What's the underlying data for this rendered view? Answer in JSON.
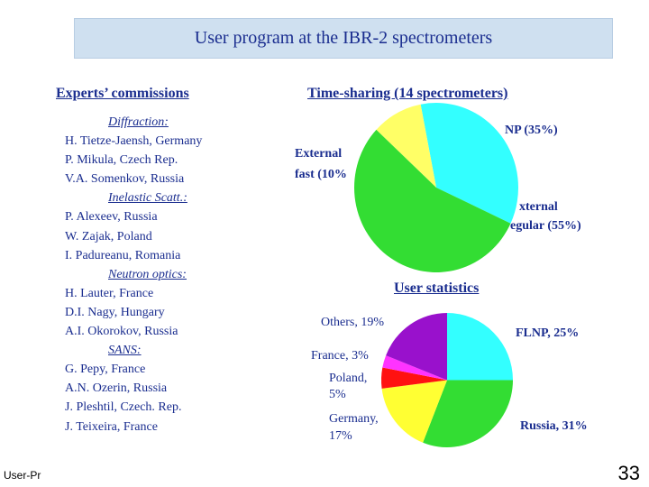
{
  "title": "User program at the IBR-2 spectrometers",
  "experts": {
    "heading": "Experts’ commissions",
    "groups": [
      {
        "category": "Diffraction:",
        "members": [
          "H. Tietze-Jaensh, Germany",
          "P. Mikula, Czech Rep.",
          "V.A. Somenkov, Russia"
        ]
      },
      {
        "category": "Inelastic Scatt.:",
        "members": [
          "P. Alexeev, Russia",
          "W. Zajak, Poland",
          "I. Padureanu, Romania"
        ]
      },
      {
        "category": "Neutron optics:",
        "members": [
          "H. Lauter, France",
          "D.I. Nagy, Hungary",
          "A.I. Okorokov, Russia"
        ]
      },
      {
        "category": "SANS:",
        "members": [
          "G. Pepy, France",
          "A.N. Ozerin, Russia",
          "J. Pleshtil, Czech. Rep.",
          "J. Teixeira, France"
        ]
      }
    ]
  },
  "time_sharing": {
    "heading": "Time-sharing (14 spectrometers)",
    "labels": {
      "flnp": "NP (35%)",
      "external_fast_line1": "External",
      "external_fast_line2": "fast (10%",
      "external_regular_line1": "xternal",
      "external_regular_line2": "egular (55%)"
    }
  },
  "user_statistics": {
    "heading": "User statistics",
    "labels": {
      "others": "Others, 19%",
      "flnp": "FLNP, 25%",
      "france": "France, 3%",
      "poland_line1": "Poland,",
      "poland_line2": "5%",
      "germany_line1": "Germany,",
      "germany_line2": "17%",
      "russia": "Russia, 31%"
    }
  },
  "chart_data": [
    {
      "type": "pie",
      "title": "Time-sharing (14 spectrometers)",
      "slices": [
        {
          "label": "FLNP",
          "value": 35,
          "color": "#33ffff"
        },
        {
          "label": "External fast",
          "value": 10,
          "color": "#ffff66"
        },
        {
          "label": "External regular",
          "value": 55,
          "color": "#33dd33"
        }
      ]
    },
    {
      "type": "pie",
      "title": "User statistics",
      "slices": [
        {
          "label": "FLNP",
          "value": 25,
          "color": "#33ffff"
        },
        {
          "label": "Russia",
          "value": 31,
          "color": "#33dd33"
        },
        {
          "label": "Germany",
          "value": 17,
          "color": "#ffff33"
        },
        {
          "label": "Poland",
          "value": 5,
          "color": "#ff1111"
        },
        {
          "label": "France",
          "value": 3,
          "color": "#ff33ff"
        },
        {
          "label": "Others",
          "value": 19,
          "color": "#9911cc"
        }
      ]
    }
  ],
  "footer": {
    "left_text": "User-Pr",
    "page_number": "33"
  }
}
